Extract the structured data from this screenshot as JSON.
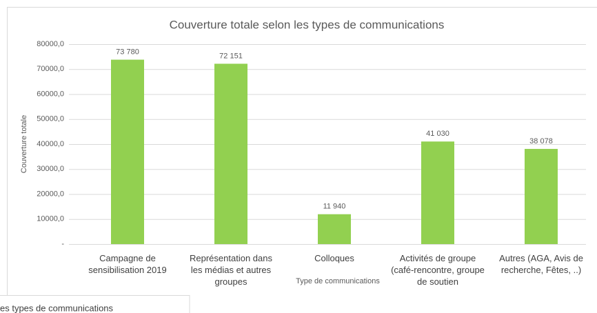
{
  "chart_data": {
    "type": "bar",
    "title": "Couverture totale selon les types de communications",
    "x_label": "Type de communications",
    "y_label": "Couverture totale",
    "categories": [
      "Campagne de sensibilisation 2019",
      "Représentation dans les médias et autres groupes",
      "Colloques",
      "Activités de groupe (café-rencontre, groupe de soutien",
      "Autres (AGA, Avis de recherche, Fêtes, ..)"
    ],
    "values": [
      73780,
      72151,
      11940,
      41030,
      38078
    ],
    "value_labels": [
      "73 780",
      "72 151",
      "11 940",
      "41 030",
      "38 078"
    ],
    "color": "#92d050",
    "ylim": [
      0,
      80000
    ],
    "yticks": [
      {
        "value": 0,
        "label": "-"
      },
      {
        "value": 10000,
        "label": "10000,0"
      },
      {
        "value": 20000,
        "label": "20000,0"
      },
      {
        "value": 30000,
        "label": "30000,0"
      },
      {
        "value": 40000,
        "label": "40000,0"
      },
      {
        "value": 50000,
        "label": "50000,0"
      },
      {
        "value": 60000,
        "label": "60000,0"
      },
      {
        "value": 70000,
        "label": "70000,0"
      },
      {
        "value": 80000,
        "label": "80000,0"
      }
    ],
    "grid": true
  },
  "overlay_text": "es types de communications"
}
